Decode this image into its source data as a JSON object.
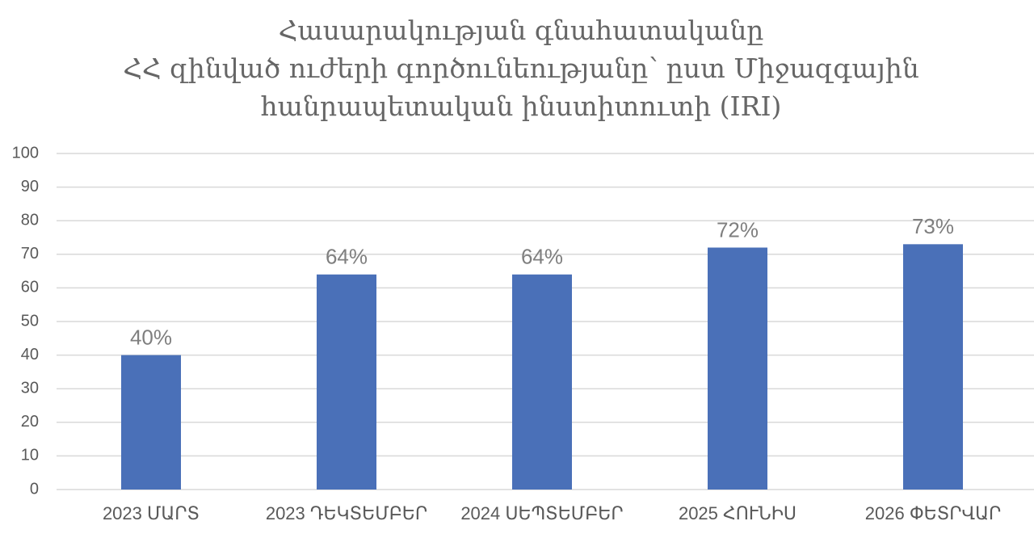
{
  "chart_data": {
    "type": "bar",
    "title": [
      "Հասարակության գնահատականը",
      "ՀՀ զինված ուժերի գործունեությանը՝ ըստ Միջազգային",
      "հանրապետական ինստիտուտի (IRI)"
    ],
    "categories": [
      "2023 ՄԱՐՏ",
      "2023 ԴԵԿՏԵՄԲԵՐ",
      "2024 ՍԵՊՏԵՄԲԵՐ",
      "2025 ՀՈՒՆԻՍ",
      "2026 ՓԵՏՐՎԱՐ"
    ],
    "values": [
      40,
      64,
      64,
      72,
      73
    ],
    "value_labels": [
      "40%",
      "64%",
      "64%",
      "72%",
      "73%"
    ],
    "color": "#4a70b8",
    "ylim": [
      0,
      100
    ],
    "yticks": [
      0,
      10,
      20,
      30,
      40,
      50,
      60,
      70,
      80,
      90,
      100
    ],
    "grid": true
  }
}
